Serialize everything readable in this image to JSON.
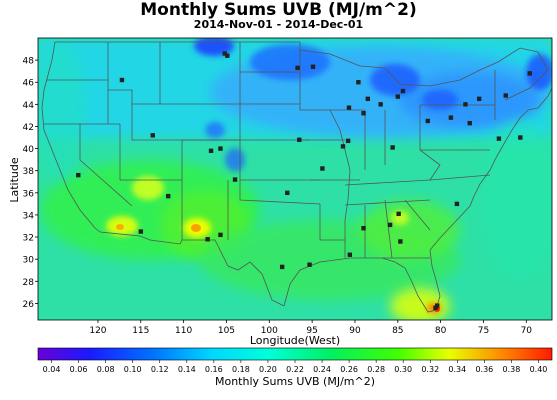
{
  "title": "Monthly Sums UVB (MJ/m^2)",
  "subtitle": "2014-Nov-01 - 2014-Dec-01",
  "map": {
    "ylabel": "Latitude",
    "xlabel": "Longitude(West)",
    "lon_range": [
      127,
      67
    ],
    "lat_range": [
      24.5,
      50
    ],
    "lat_ticks": [
      "48",
      "46",
      "44",
      "42",
      "40",
      "38",
      "36",
      "34",
      "32",
      "30",
      "28",
      "26"
    ],
    "lon_ticks": [
      "120",
      "115",
      "110",
      "105",
      "100",
      "95",
      "90",
      "85",
      "80",
      "75",
      "70"
    ],
    "ocean_color": "#2ee0a6",
    "stations": [
      [
        117.2,
        46.2
      ],
      [
        105.2,
        48.6
      ],
      [
        104.9,
        48.4
      ],
      [
        96.7,
        47.3
      ],
      [
        94.9,
        47.4
      ],
      [
        89.6,
        46.0
      ],
      [
        88.5,
        44.5
      ],
      [
        87.0,
        44.0
      ],
      [
        85.0,
        44.7
      ],
      [
        89.0,
        43.2
      ],
      [
        90.7,
        43.7
      ],
      [
        84.4,
        45.2
      ],
      [
        77.1,
        44.0
      ],
      [
        75.5,
        44.5
      ],
      [
        72.4,
        44.8
      ],
      [
        69.6,
        46.8
      ],
      [
        81.5,
        42.5
      ],
      [
        78.8,
        42.8
      ],
      [
        76.6,
        42.3
      ],
      [
        96.5,
        40.8
      ],
      [
        91.4,
        40.2
      ],
      [
        90.8,
        40.7
      ],
      [
        85.6,
        40.1
      ],
      [
        73.2,
        40.9
      ],
      [
        70.7,
        41.0
      ],
      [
        113.6,
        41.2
      ],
      [
        106.8,
        39.8
      ],
      [
        105.7,
        40.0
      ],
      [
        104.0,
        37.2
      ],
      [
        97.9,
        36.0
      ],
      [
        93.8,
        38.2
      ],
      [
        78.1,
        35.0
      ],
      [
        122.3,
        37.6
      ],
      [
        111.8,
        35.7
      ],
      [
        115.0,
        32.5
      ],
      [
        105.7,
        32.2
      ],
      [
        89.0,
        32.8
      ],
      [
        84.7,
        31.6
      ],
      [
        85.9,
        33.1
      ],
      [
        84.9,
        34.1
      ],
      [
        98.5,
        29.3
      ],
      [
        95.3,
        29.5
      ],
      [
        90.6,
        30.4
      ],
      [
        80.4,
        25.8
      ],
      [
        80.6,
        25.6
      ],
      [
        107.2,
        31.8
      ]
    ],
    "station_color": "#222222"
  },
  "colorbar": {
    "label": "Monthly Sums UVB (MJ/m^2)",
    "ticks": [
      "0.04",
      "0.06",
      "0.08",
      "0.10",
      "0.12",
      "0.14",
      "0.16",
      "0.18",
      "0.20",
      "0.22",
      "0.24",
      "0.26",
      "0.28",
      "0.30",
      "0.32",
      "0.34",
      "0.36",
      "0.38",
      "0.40"
    ],
    "range": [
      0.03,
      0.41
    ]
  }
}
